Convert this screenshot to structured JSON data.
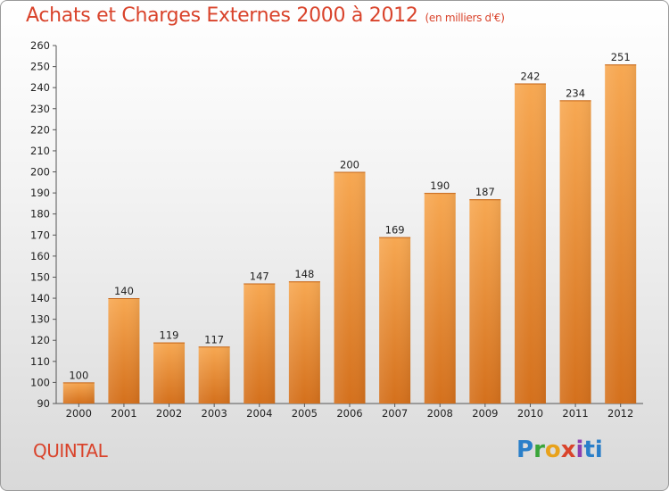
{
  "header": {
    "title": "Achats et Charges Externes 2000 à 2012",
    "subtitle": "(en milliers d'€)"
  },
  "commune": "QUINTAL",
  "logo": {
    "letters": [
      "P",
      "r",
      "o",
      "x",
      "i",
      "ti"
    ]
  },
  "chart_data": {
    "type": "bar",
    "title": "Achats et Charges Externes 2000 à 2012",
    "subtitle": "(en milliers d'€)",
    "categories": [
      "2000",
      "2001",
      "2002",
      "2003",
      "2004",
      "2005",
      "2006",
      "2007",
      "2008",
      "2009",
      "2010",
      "2011",
      "2012"
    ],
    "values": [
      100,
      140,
      119,
      117,
      147,
      148,
      200,
      169,
      190,
      187,
      242,
      234,
      251
    ],
    "ylim": [
      90,
      260
    ],
    "yticks": [
      90,
      100,
      110,
      120,
      130,
      140,
      150,
      160,
      170,
      180,
      190,
      200,
      210,
      220,
      230,
      240,
      250,
      260
    ],
    "grid": false,
    "bar_color": "#f0913a",
    "legend": "none"
  }
}
